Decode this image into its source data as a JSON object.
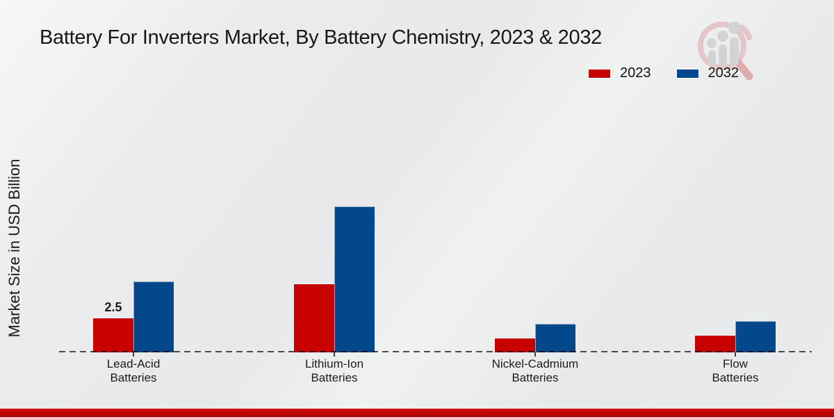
{
  "title": "Battery For Inverters Market, By Battery Chemistry, 2023 & 2032",
  "y_axis_label": "Market Size in USD Billion",
  "legend": [
    {
      "label": "2023",
      "color": "#c80101"
    },
    {
      "label": "2032",
      "color": "#03488b"
    }
  ],
  "colors": {
    "red_2023": "#c80101",
    "blue_2032": "#03488b",
    "bottom_accent": "#b80505",
    "baseline_dash": "#4a4a4a",
    "background": "#eaebec"
  },
  "chart_data": {
    "type": "bar",
    "title": "Battery For Inverters Market, By Battery Chemistry, 2023 & 2032",
    "xlabel": "",
    "ylabel": "Market Size in USD Billion",
    "unit": "USD Billion",
    "grid": "off",
    "legend_position": "top-right",
    "baseline_value": 0,
    "ylim": [
      0,
      11.5
    ],
    "categories": [
      {
        "line1": "Lead-Acid",
        "line2": "Batteries"
      },
      {
        "line1": "Lithium-Ion",
        "line2": "Batteries"
      },
      {
        "line1": "Nickel-Cadmium",
        "line2": "Batteries"
      },
      {
        "line1": "Flow",
        "line2": "Batteries"
      }
    ],
    "series": [
      {
        "name": "2023",
        "color": "#c80101",
        "values": [
          2.5,
          5.0,
          1.0,
          1.2
        ],
        "data_labels": [
          "2.5",
          null,
          null,
          null
        ]
      },
      {
        "name": "2032",
        "color": "#03488b",
        "values": [
          5.2,
          10.7,
          2.1,
          2.3
        ],
        "data_labels": [
          null,
          null,
          null,
          null
        ]
      }
    ]
  },
  "logo": {
    "name": "market-research-magnifier-chart-logo"
  }
}
